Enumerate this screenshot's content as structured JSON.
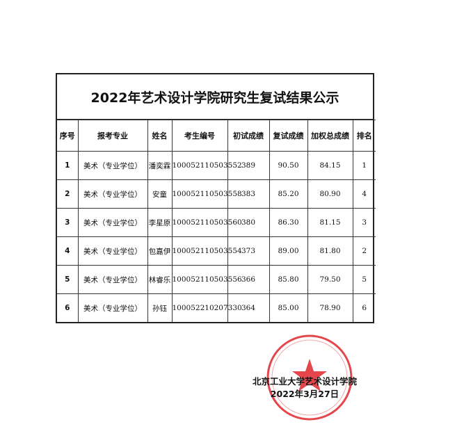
{
  "title": "2022年艺术设计学院研究生复试结果公示",
  "headers": [
    "序号",
    "报考专业",
    "姓名",
    "考生编号",
    "初试成绩",
    "复试成绩",
    "加权总成绩",
    "排名"
  ],
  "rows": [
    [
      "1",
      "美术（专业学位）",
      "潘奕霖",
      "100052110503552",
      "389",
      "90.50",
      "84.15",
      "1"
    ],
    [
      "2",
      "美术（专业学位）",
      "安童",
      "100052110503558",
      "383",
      "85.20",
      "80.90",
      "4"
    ],
    [
      "3",
      "美术（专业学位）",
      "李星原",
      "100052110503560",
      "380",
      "86.30",
      "81.15",
      "3"
    ],
    [
      "4",
      "美术（专业学位）",
      "包嘉伊",
      "100052110503554",
      "373",
      "89.00",
      "81.80",
      "2"
    ],
    [
      "5",
      "美术（专业学位）",
      "林睿乐",
      "100052110503556",
      "366",
      "85.80",
      "79.50",
      "5"
    ],
    [
      "6",
      "美术（专业学位）",
      "孙钰",
      "100052210207330",
      "364",
      "85.00",
      "78.90",
      "6"
    ]
  ],
  "signature": {
    "org": "北京工业大学艺术设计学院",
    "date": "2022年3月27日"
  },
  "stamp": {
    "outer_text": "北京工业大学",
    "inner_text": "艺术设计学院",
    "color": "#e0262b"
  }
}
